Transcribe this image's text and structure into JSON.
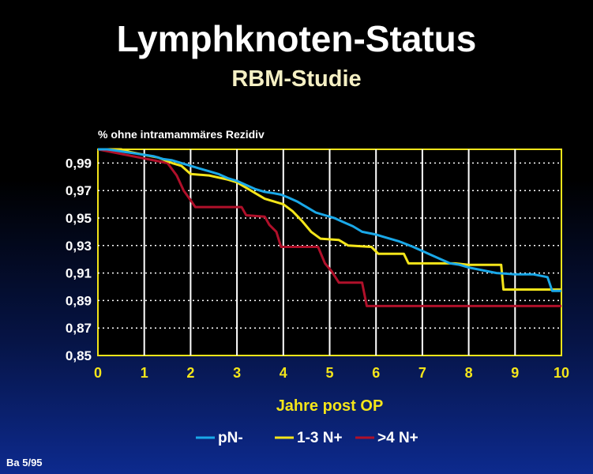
{
  "header": {
    "title": "Lymphknoten-Status",
    "subtitle": "RBM-Studie"
  },
  "footer": {
    "note": "Ba 5/95"
  },
  "colors": {
    "pN-": "#1aa8e8",
    "1-3 N+": "#f4e51a",
    ">4 N+": "#b0102a",
    "grid": "#ffffff",
    "axis_text": "#f4e51a"
  },
  "chart_data": {
    "type": "line",
    "title": "Lymphknoten-Status",
    "subtitle": "RBM-Studie",
    "xlabel": "Jahre post OP",
    "ylabel": "% ohne intramammäres Rezidiv",
    "xlim": [
      0,
      10
    ],
    "ylim": [
      0.85,
      1.0
    ],
    "x_ticks": [
      "0",
      "1",
      "2",
      "3",
      "4",
      "5",
      "6",
      "7",
      "8",
      "9",
      "10"
    ],
    "y_ticks": [
      0.99,
      0.97,
      0.95,
      0.93,
      0.91,
      0.89,
      0.87,
      0.85
    ],
    "y_tick_labels": [
      "0,99",
      "0,97",
      "0,95",
      "0,93",
      "0,91",
      "0,89",
      "0,87",
      "0,85"
    ],
    "grid": "dotted",
    "legend_position": "bottom",
    "series": [
      {
        "name": "pN-",
        "color": "#1aa8e8",
        "points": [
          [
            0,
            1.0
          ],
          [
            0.2,
            1.0
          ],
          [
            0.4,
            0.999
          ],
          [
            0.6,
            0.998
          ],
          [
            0.8,
            0.997
          ],
          [
            1.0,
            0.996
          ],
          [
            1.2,
            0.995
          ],
          [
            1.4,
            0.993
          ],
          [
            1.6,
            0.992
          ],
          [
            1.8,
            0.99
          ],
          [
            2.0,
            0.988
          ],
          [
            2.2,
            0.986
          ],
          [
            2.4,
            0.984
          ],
          [
            2.6,
            0.982
          ],
          [
            2.8,
            0.979
          ],
          [
            3.0,
            0.977
          ],
          [
            3.2,
            0.974
          ],
          [
            3.4,
            0.971
          ],
          [
            3.6,
            0.969
          ],
          [
            3.8,
            0.968
          ],
          [
            3.95,
            0.967
          ],
          [
            4.1,
            0.965
          ],
          [
            4.3,
            0.962
          ],
          [
            4.5,
            0.958
          ],
          [
            4.7,
            0.954
          ],
          [
            4.9,
            0.952
          ],
          [
            5.1,
            0.95
          ],
          [
            5.3,
            0.947
          ],
          [
            5.5,
            0.944
          ],
          [
            5.7,
            0.94
          ],
          [
            6.0,
            0.938
          ],
          [
            6.2,
            0.936
          ],
          [
            6.5,
            0.933
          ],
          [
            6.8,
            0.929
          ],
          [
            7.0,
            0.926
          ],
          [
            7.2,
            0.923
          ],
          [
            7.4,
            0.92
          ],
          [
            7.6,
            0.917
          ],
          [
            7.8,
            0.916
          ],
          [
            8.0,
            0.914
          ],
          [
            8.3,
            0.912
          ],
          [
            8.6,
            0.91
          ],
          [
            9.0,
            0.909
          ],
          [
            9.4,
            0.909
          ],
          [
            9.7,
            0.907
          ],
          [
            9.8,
            0.897
          ],
          [
            10.0,
            0.897
          ]
        ]
      },
      {
        "name": "1-3 N+",
        "color": "#f4e51a",
        "points": [
          [
            0,
            1.0
          ],
          [
            0.5,
            1.0
          ],
          [
            0.7,
            0.998
          ],
          [
            1.0,
            0.996
          ],
          [
            1.3,
            0.994
          ],
          [
            1.6,
            0.99
          ],
          [
            1.8,
            0.988
          ],
          [
            2.0,
            0.982
          ],
          [
            2.4,
            0.981
          ],
          [
            2.8,
            0.978
          ],
          [
            3.0,
            0.976
          ],
          [
            3.2,
            0.972
          ],
          [
            3.4,
            0.968
          ],
          [
            3.6,
            0.964
          ],
          [
            3.8,
            0.962
          ],
          [
            4.0,
            0.96
          ],
          [
            4.2,
            0.955
          ],
          [
            4.4,
            0.948
          ],
          [
            4.6,
            0.94
          ],
          [
            4.8,
            0.935
          ],
          [
            5.2,
            0.934
          ],
          [
            5.4,
            0.93
          ],
          [
            5.9,
            0.929
          ],
          [
            6.05,
            0.924
          ],
          [
            6.6,
            0.924
          ],
          [
            6.7,
            0.917
          ],
          [
            7.7,
            0.917
          ],
          [
            8.0,
            0.916
          ],
          [
            8.7,
            0.916
          ],
          [
            8.75,
            0.898
          ],
          [
            10.0,
            0.898
          ]
        ]
      },
      {
        "name": ">4 N+",
        "color": "#b0102a",
        "points": [
          [
            0,
            1.0
          ],
          [
            1.5,
            0.99
          ],
          [
            1.7,
            0.981
          ],
          [
            1.85,
            0.97
          ],
          [
            2.0,
            0.963
          ],
          [
            2.1,
            0.958
          ],
          [
            3.1,
            0.958
          ],
          [
            3.2,
            0.952
          ],
          [
            3.6,
            0.951
          ],
          [
            3.7,
            0.945
          ],
          [
            3.85,
            0.94
          ],
          [
            3.95,
            0.929
          ],
          [
            4.75,
            0.929
          ],
          [
            4.9,
            0.917
          ],
          [
            5.05,
            0.911
          ],
          [
            5.2,
            0.903
          ],
          [
            5.7,
            0.903
          ],
          [
            5.8,
            0.886
          ],
          [
            10.0,
            0.886
          ]
        ]
      }
    ]
  }
}
